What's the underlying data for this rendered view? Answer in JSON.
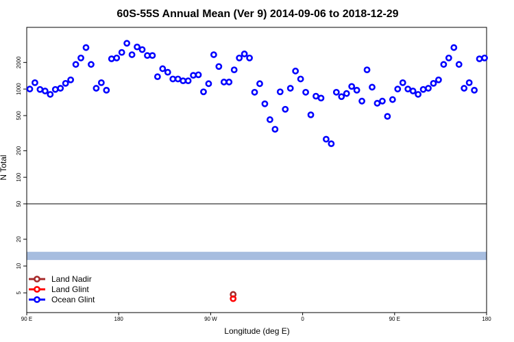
{
  "chart_data": {
    "type": "scatter",
    "title": "60S-55S Annual Mean (Ver 9)   2014-09-06 to 2018-12-29",
    "xlabel": "Longitude (deg E)",
    "ylabel": "N Total",
    "x_ticks": [
      {
        "value": 90,
        "label": "90 E"
      },
      {
        "value": 180,
        "label": "180"
      },
      {
        "value": 270,
        "label": "90 W"
      },
      {
        "value": 360,
        "label": "0"
      },
      {
        "value": 450,
        "label": "90 E"
      },
      {
        "value": 540,
        "label": "180"
      }
    ],
    "xlim": [
      90,
      540
    ],
    "y_scale": "log",
    "upper_ylim": [
      50,
      5000
    ],
    "upper_y_ticks": [
      50,
      100,
      200,
      500,
      1000,
      2000
    ],
    "lower_ylim": [
      3,
      50
    ],
    "lower_y_ticks": [
      5,
      10,
      20
    ],
    "band": {
      "value": 13,
      "color": "#a7bddf"
    },
    "legend": {
      "position": "bottom-left",
      "entries": [
        {
          "name": "Land Nadir",
          "color": "#a52a2a"
        },
        {
          "name": "Land Glint",
          "color": "#ff0000"
        },
        {
          "name": "Ocean Glint",
          "color": "#0000ff"
        }
      ]
    },
    "series": [
      {
        "name": "Ocean Glint",
        "color": "#0000ff",
        "points": [
          [
            93,
            1000
          ],
          [
            98,
            1180
          ],
          [
            103,
            990
          ],
          [
            108,
            950
          ],
          [
            113,
            870
          ],
          [
            118,
            990
          ],
          [
            123,
            1020
          ],
          [
            128,
            1160
          ],
          [
            133,
            1270
          ],
          [
            138,
            1900
          ],
          [
            143,
            2250
          ],
          [
            148,
            2950
          ],
          [
            153,
            1900
          ],
          [
            158,
            1020
          ],
          [
            163,
            1180
          ],
          [
            168,
            970
          ],
          [
            173,
            2200
          ],
          [
            178,
            2250
          ],
          [
            183,
            2600
          ],
          [
            188,
            3300
          ],
          [
            193,
            2450
          ],
          [
            198,
            3000
          ],
          [
            203,
            2800
          ],
          [
            208,
            2400
          ],
          [
            213,
            2400
          ],
          [
            218,
            1380
          ],
          [
            223,
            1700
          ],
          [
            228,
            1550
          ],
          [
            233,
            1300
          ],
          [
            238,
            1300
          ],
          [
            243,
            1240
          ],
          [
            248,
            1240
          ],
          [
            253,
            1430
          ],
          [
            258,
            1450
          ],
          [
            263,
            930
          ],
          [
            268,
            1150
          ],
          [
            273,
            2450
          ],
          [
            278,
            1800
          ],
          [
            283,
            1200
          ],
          [
            288,
            1200
          ],
          [
            293,
            1650
          ],
          [
            298,
            2250
          ],
          [
            303,
            2500
          ],
          [
            308,
            2250
          ],
          [
            313,
            920
          ],
          [
            318,
            1150
          ],
          [
            323,
            680
          ],
          [
            328,
            450
          ],
          [
            333,
            350
          ],
          [
            338,
            930
          ],
          [
            343,
            590
          ],
          [
            348,
            1020
          ],
          [
            353,
            1600
          ],
          [
            358,
            1300
          ],
          [
            363,
            920
          ],
          [
            368,
            510
          ],
          [
            373,
            830
          ],
          [
            378,
            790
          ],
          [
            383,
            270
          ],
          [
            388,
            240
          ],
          [
            393,
            920
          ],
          [
            398,
            820
          ],
          [
            403,
            890
          ],
          [
            408,
            1070
          ],
          [
            413,
            970
          ],
          [
            418,
            730
          ],
          [
            423,
            1650
          ],
          [
            428,
            1050
          ],
          [
            433,
            690
          ],
          [
            438,
            730
          ],
          [
            443,
            490
          ],
          [
            448,
            760
          ],
          [
            453,
            1000
          ],
          [
            458,
            1180
          ],
          [
            463,
            1000
          ],
          [
            468,
            950
          ],
          [
            473,
            870
          ],
          [
            478,
            990
          ],
          [
            483,
            1020
          ],
          [
            488,
            1160
          ],
          [
            493,
            1270
          ],
          [
            498,
            1900
          ],
          [
            503,
            2250
          ],
          [
            508,
            2950
          ],
          [
            513,
            1900
          ],
          [
            518,
            1020
          ],
          [
            523,
            1180
          ],
          [
            528,
            970
          ],
          [
            533,
            2200
          ],
          [
            538,
            2250
          ]
        ]
      },
      {
        "name": "Land Nadir",
        "color": "#a52a2a",
        "points": [
          [
            292,
            4.8
          ]
        ]
      },
      {
        "name": "Land Glint",
        "color": "#ff0000",
        "points": [
          [
            292,
            4.3
          ]
        ]
      }
    ]
  }
}
